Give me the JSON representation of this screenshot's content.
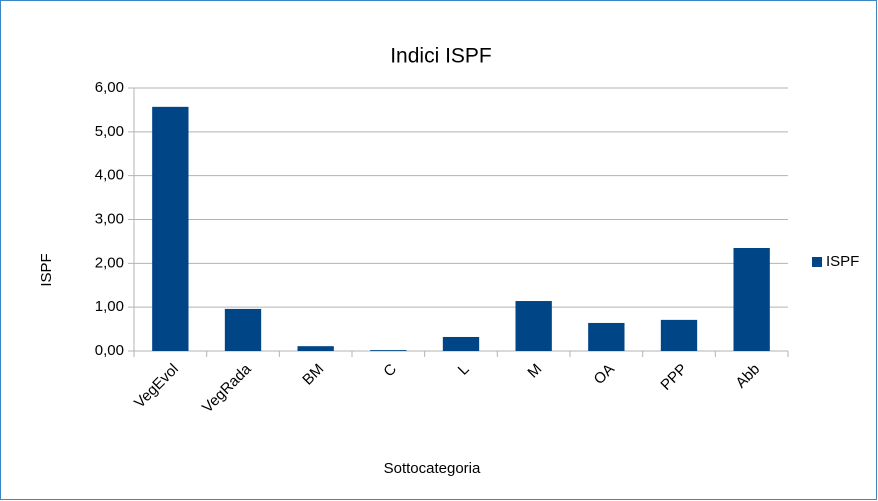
{
  "chart_data": {
    "type": "bar",
    "title": "Indici ISPF",
    "x_label": "Sottocategoria",
    "y_label": "ISPF",
    "categories": [
      "VegEvol",
      "VegRada",
      "BM",
      "C",
      "L",
      "M",
      "OA",
      "PPP",
      "Abb"
    ],
    "series": [
      {
        "name": "ISPF",
        "color": "#004586",
        "values": [
          5.57,
          0.96,
          0.11,
          0.02,
          0.32,
          1.14,
          0.64,
          0.71,
          2.35
        ]
      }
    ],
    "ylim": [
      0,
      6
    ],
    "yticks": [
      {
        "value": 0,
        "label": "0,00"
      },
      {
        "value": 1,
        "label": "1,00"
      },
      {
        "value": 2,
        "label": "2,00"
      },
      {
        "value": 3,
        "label": "3,00"
      },
      {
        "value": 4,
        "label": "4,00"
      },
      {
        "value": 5,
        "label": "5,00"
      },
      {
        "value": 6,
        "label": "6,00"
      }
    ],
    "grid": true,
    "legend": "right"
  }
}
